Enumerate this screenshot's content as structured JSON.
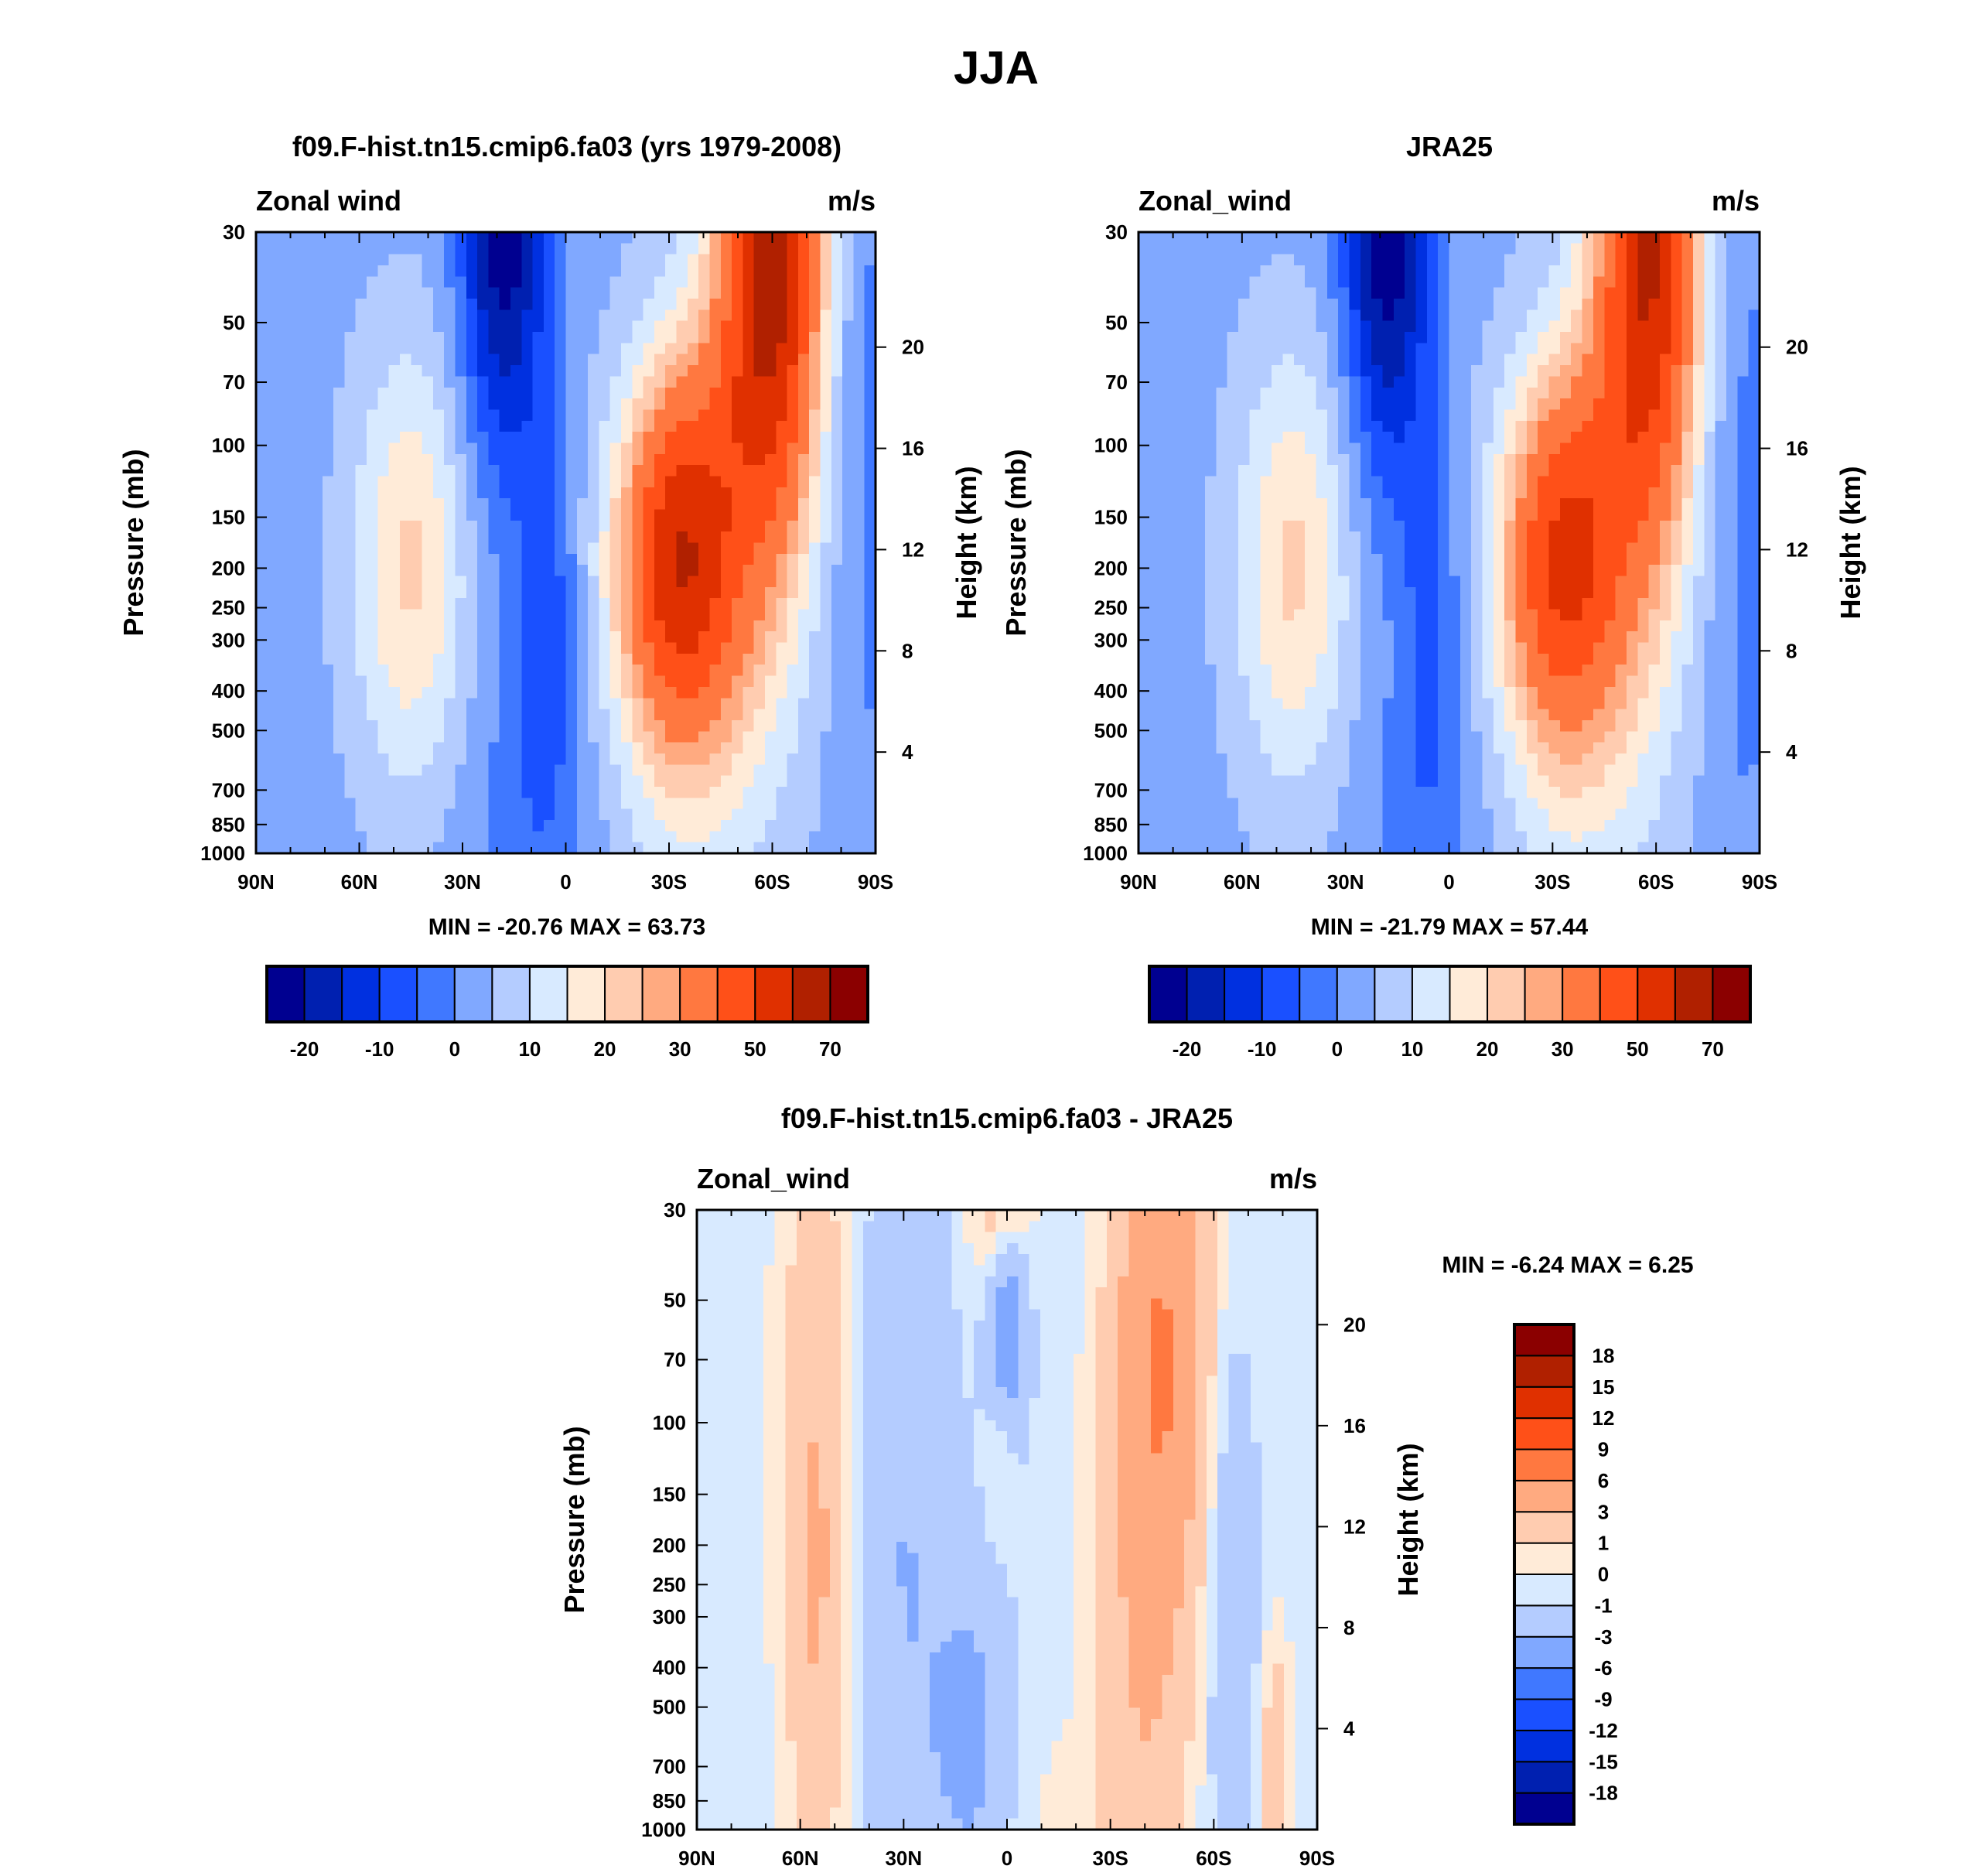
{
  "title": "JJA",
  "colors": {
    "abs": [
      "#000090",
      "#0020b0",
      "#0030e0",
      "#1a50ff",
      "#4078ff",
      "#80a8ff",
      "#b4ccff",
      "#d8eaff",
      "#ffebd8",
      "#ffccb0",
      "#ffaa80",
      "#ff7840",
      "#ff5018",
      "#e03000",
      "#b02000",
      "#8b0000"
    ],
    "diff": [
      "#000090",
      "#0020b0",
      "#0030e0",
      "#1a50ff",
      "#4078ff",
      "#80a8ff",
      "#b4ccff",
      "#d8eaff",
      "#ffebd8",
      "#ffccb0",
      "#ffaa80",
      "#ff7840",
      "#ff5018",
      "#e03000",
      "#b02000",
      "#8b0000"
    ]
  },
  "chart_data": [
    {
      "type": "heatmap",
      "title": "f09.F-hist.tn15.cmip6.fa03 (yrs 1979-2008)",
      "left_label": "Zonal wind",
      "right_label": "m/s",
      "ylabel": "Pressure (mb)",
      "ylabel_right": "Height (km)",
      "x_ticks": [
        "90N",
        "60N",
        "30N",
        "0",
        "30S",
        "60S",
        "90S"
      ],
      "y_ticks": [
        "30",
        "50",
        "70",
        "100",
        "150",
        "200",
        "250",
        "300",
        "400",
        "500",
        "700",
        "850",
        "1000"
      ],
      "y_ticks_right": [
        "4",
        "8",
        "12",
        "16",
        "20"
      ],
      "min_max_text": "MIN = -20.76  MAX =  63.73",
      "levels": [
        -20,
        -15,
        -10,
        -5,
        0,
        5,
        10,
        15,
        20,
        25,
        30,
        40,
        50,
        60,
        70
      ],
      "colorbar_labels": [
        "-20",
        "-10",
        "0",
        "10",
        "20",
        "30",
        "50",
        "70"
      ],
      "background": 3,
      "features": [
        {
          "lat": -32,
          "p": 190,
          "value": 42,
          "lat_width": 12,
          "logp_width": 0.2
        },
        {
          "lat": -60,
          "p": 30,
          "value": 60,
          "lat_width": 10,
          "logp_width": 0.32
        },
        {
          "lat": -40,
          "p": 350,
          "value": 14,
          "lat_width": 18,
          "logp_width": 0.3
        },
        {
          "lat": -48,
          "p": 90,
          "value": 12,
          "lat_width": 14,
          "logp_width": 0.25
        },
        {
          "lat": 45,
          "p": 200,
          "value": 18,
          "lat_width": 12,
          "logp_width": 0.25
        },
        {
          "lat": 18,
          "p": 30,
          "value": -26,
          "lat_width": 9,
          "logp_width": 0.28
        },
        {
          "lat": 5,
          "p": 250,
          "value": -10,
          "lat_width": 6,
          "logp_width": 0.22
        },
        {
          "lat": 10,
          "p": 800,
          "value": -6,
          "lat_width": 14,
          "logp_width": 0.2
        },
        {
          "lat": -88,
          "p": 100,
          "value": -5,
          "lat_width": 8,
          "logp_width": 0.5
        }
      ]
    },
    {
      "type": "heatmap",
      "title": "JRA25",
      "left_label": "Zonal_wind",
      "right_label": "m/s",
      "ylabel": "Pressure (mb)",
      "ylabel_right": "Height (km)",
      "x_ticks": [
        "90N",
        "60N",
        "30N",
        "0",
        "30S",
        "60S",
        "90S"
      ],
      "y_ticks": [
        "30",
        "50",
        "70",
        "100",
        "150",
        "200",
        "250",
        "300",
        "400",
        "500",
        "700",
        "850",
        "1000"
      ],
      "y_ticks_right": [
        "4",
        "8",
        "12",
        "16",
        "20"
      ],
      "min_max_text": "MIN = -21.79  MAX =  57.44",
      "levels": [
        -20,
        -15,
        -10,
        -5,
        0,
        5,
        10,
        15,
        20,
        25,
        30,
        40,
        50,
        60,
        70
      ],
      "colorbar_labels": [
        "-20",
        "-10",
        "0",
        "10",
        "20",
        "30",
        "50",
        "70"
      ],
      "background": 3,
      "features": [
        {
          "lat": -32,
          "p": 190,
          "value": 36,
          "lat_width": 12,
          "logp_width": 0.2
        },
        {
          "lat": -58,
          "p": 30,
          "value": 54,
          "lat_width": 10,
          "logp_width": 0.32
        },
        {
          "lat": -40,
          "p": 350,
          "value": 14,
          "lat_width": 18,
          "logp_width": 0.3
        },
        {
          "lat": -48,
          "p": 90,
          "value": 10,
          "lat_width": 14,
          "logp_width": 0.25
        },
        {
          "lat": 45,
          "p": 200,
          "value": 18,
          "lat_width": 12,
          "logp_width": 0.25
        },
        {
          "lat": 18,
          "p": 30,
          "value": -27,
          "lat_width": 9,
          "logp_width": 0.28
        },
        {
          "lat": 5,
          "p": 250,
          "value": -9,
          "lat_width": 6,
          "logp_width": 0.22
        },
        {
          "lat": 8,
          "p": 800,
          "value": -5,
          "lat_width": 14,
          "logp_width": 0.2
        },
        {
          "lat": -85,
          "p": 150,
          "value": -5,
          "lat_width": 8,
          "logp_width": 0.5
        }
      ]
    },
    {
      "type": "heatmap",
      "title": "f09.F-hist.tn15.cmip6.fa03 - JRA25",
      "left_label": "Zonal_wind",
      "right_label": "m/s",
      "ylabel": "Pressure (mb)",
      "ylabel_right": "Height (km)",
      "x_ticks": [
        "90N",
        "60N",
        "30N",
        "0",
        "30S",
        "60S",
        "90S"
      ],
      "y_ticks": [
        "30",
        "50",
        "70",
        "100",
        "150",
        "200",
        "250",
        "300",
        "400",
        "500",
        "700",
        "850",
        "1000"
      ],
      "y_ticks_right": [
        "4",
        "8",
        "12",
        "16",
        "20"
      ],
      "min_max_text": "MIN =  -6.24  MAX =   6.25",
      "levels": [
        -18,
        -15,
        -12,
        -9,
        -6,
        -3,
        -1,
        0,
        1,
        3,
        6,
        9,
        12,
        15,
        18
      ],
      "colorbar_labels": [
        "-18",
        "-15",
        "-12",
        "-9",
        "-6",
        "-3",
        "-1",
        "0",
        "1",
        "3",
        "6",
        "9",
        "12",
        "15",
        "18"
      ],
      "background": -0.5,
      "features": [
        {
          "lat": 55,
          "p": 120,
          "value": 3.2,
          "lat_width": 8,
          "logp_width": 0.4
        },
        {
          "lat": 55,
          "p": 600,
          "value": 1.5,
          "lat_width": 5,
          "logp_width": 0.3
        },
        {
          "lat": 30,
          "p": 200,
          "value": -2.5,
          "lat_width": 10,
          "logp_width": 0.5
        },
        {
          "lat": 2,
          "p": 30,
          "value": 3,
          "lat_width": 6,
          "logp_width": 0.1
        },
        {
          "lat": 0,
          "p": 60,
          "value": -5.5,
          "lat_width": 4,
          "logp_width": 0.12
        },
        {
          "lat": 2,
          "p": 110,
          "value": 1.8,
          "lat_width": 3,
          "logp_width": 0.1
        },
        {
          "lat": -45,
          "p": 60,
          "value": 6,
          "lat_width": 10,
          "logp_width": 0.3
        },
        {
          "lat": -40,
          "p": 400,
          "value": 3,
          "lat_width": 10,
          "logp_width": 0.35
        },
        {
          "lat": -65,
          "p": 300,
          "value": -2.5,
          "lat_width": 5,
          "logp_width": 0.35
        },
        {
          "lat": -78,
          "p": 700,
          "value": 3,
          "lat_width": 3,
          "logp_width": 0.15
        },
        {
          "lat": 10,
          "p": 600,
          "value": -3,
          "lat_width": 8,
          "logp_width": 0.2
        },
        {
          "lat": -20,
          "p": 900,
          "value": 0.8,
          "lat_width": 15,
          "logp_width": 0.1
        }
      ]
    }
  ]
}
